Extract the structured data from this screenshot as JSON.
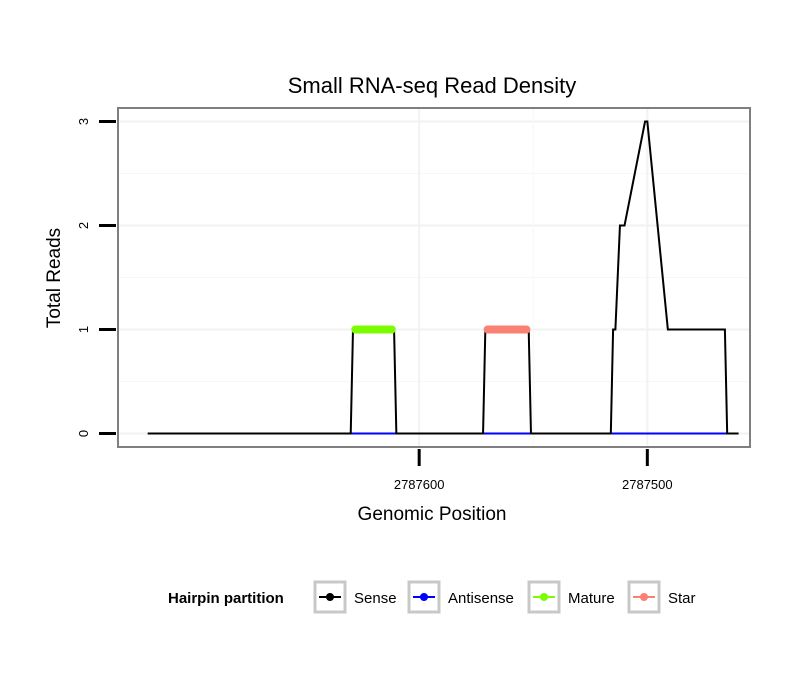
{
  "chart_data": {
    "type": "line",
    "title": "Small RNA-seq Read Density",
    "xlabel": "Genomic Position",
    "ylabel": "Total Reads",
    "x_reversed": true,
    "xlim": [
      2787732,
      2787455
    ],
    "ylim": [
      -0.13,
      3.13
    ],
    "x_ticks": [
      2787600,
      2787500
    ],
    "x_tick_labels": [
      "2787600",
      "2787500"
    ],
    "y_ticks": [
      0,
      1,
      2,
      3
    ],
    "y_tick_labels": [
      "0",
      "1",
      "2",
      "3"
    ],
    "grid": true,
    "legend": {
      "title": "Hairpin partition",
      "position": "bottom",
      "entries": [
        {
          "label": "Sense",
          "color": "#000000"
        },
        {
          "label": "Antisense",
          "color": "#0000ff"
        },
        {
          "label": "Mature",
          "color": "#7cfc00"
        },
        {
          "label": "Star",
          "color": "#fa8072"
        }
      ]
    },
    "series": [
      {
        "name": "Sense",
        "color": "#000000",
        "x": [
          2787719,
          2787630,
          2787629,
          2787611,
          2787610,
          2787572,
          2787571,
          2787552,
          2787551,
          2787516,
          2787515,
          2787514,
          2787512,
          2787510,
          2787501,
          2787500,
          2787491,
          2787484,
          2787483,
          2787466,
          2787465,
          2787460
        ],
        "y": [
          0,
          0,
          1,
          1,
          0,
          0,
          1,
          1,
          0,
          0,
          1,
          1,
          2,
          2,
          3,
          3,
          1,
          1,
          1,
          1,
          0,
          0
        ]
      },
      {
        "name": "Antisense",
        "color": "#0000ff",
        "x": [
          2787630,
          2787610,
          2787572,
          2787552,
          2787516,
          2787465
        ],
        "y": [
          0,
          0,
          0,
          0,
          0,
          0
        ]
      },
      {
        "name": "Mature",
        "color": "#7cfc00",
        "x": [
          2787628,
          2787612
        ],
        "y": [
          1,
          1
        ]
      },
      {
        "name": "Star",
        "color": "#fa8072",
        "x": [
          2787570,
          2787553
        ],
        "y": [
          1,
          1
        ]
      }
    ]
  }
}
